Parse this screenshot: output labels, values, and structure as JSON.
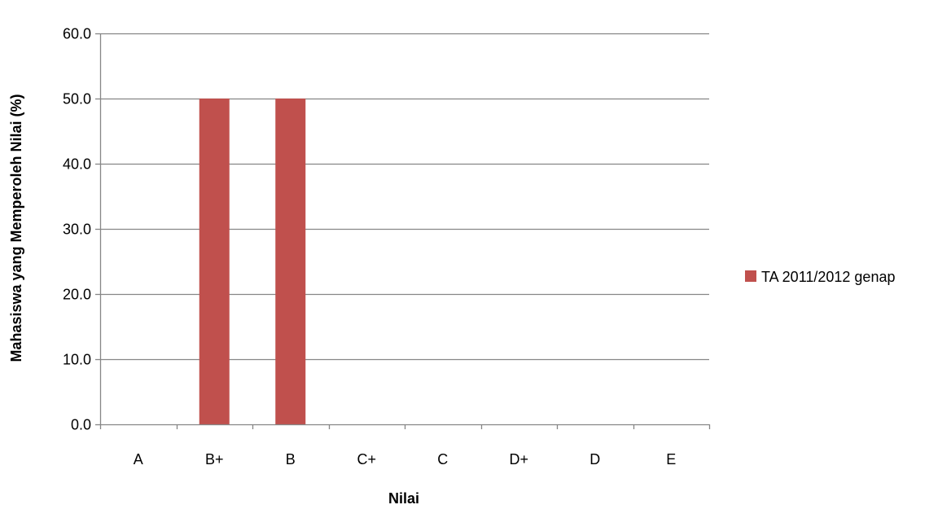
{
  "chart_data": {
    "type": "bar",
    "title": "",
    "xlabel": "Nilai",
    "ylabel": "Mahasiswa yang Memperoleh Nilai (%)",
    "categories": [
      "A",
      "B+",
      "B",
      "C+",
      "C",
      "D+",
      "D",
      "E"
    ],
    "series": [
      {
        "name": "TA 2011/2012 genap",
        "color": "#c0504d",
        "values": [
          0,
          50,
          50,
          0,
          0,
          0,
          0,
          0
        ]
      }
    ],
    "ylim": [
      0,
      60
    ],
    "yticks": [
      0,
      10,
      20,
      30,
      40,
      50,
      60
    ],
    "ytick_labels": [
      "0.0",
      "10.0",
      "20.0",
      "30.0",
      "40.0",
      "50.0",
      "60.0"
    ],
    "grid": true,
    "legend_position": "right",
    "gridline_color": "#868686",
    "axis_color": "#868686"
  }
}
